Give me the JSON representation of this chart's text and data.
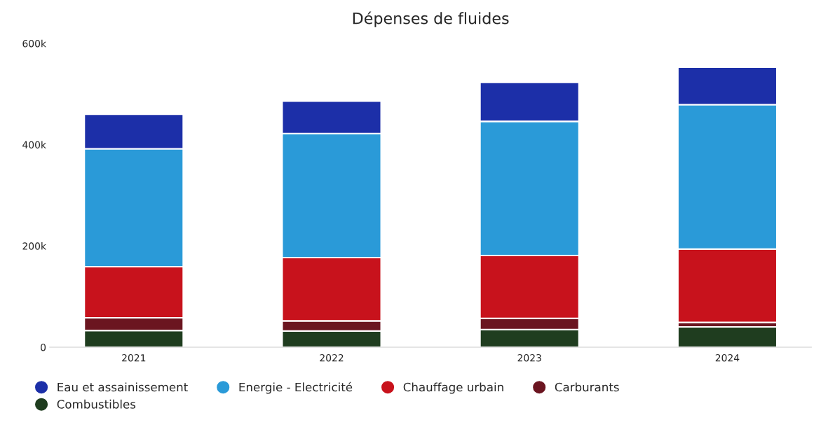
{
  "chart_data": {
    "type": "bar",
    "title": "Dépenses de fluides",
    "stacked": true,
    "categories": [
      "2021",
      "2022",
      "2023",
      "2024"
    ],
    "series": [
      {
        "name": "Combustibles",
        "color": "#1f3d1f",
        "values": [
          33,
          32,
          35,
          40
        ]
      },
      {
        "name": "Carburants",
        "color": "#6b1520",
        "values": [
          25,
          20,
          22,
          9
        ]
      },
      {
        "name": "Chauffage urbain",
        "color": "#c8121c",
        "values": [
          101,
          125,
          124,
          145
        ]
      },
      {
        "name": "Energie - Electricité",
        "color": "#2a9ad8",
        "values": [
          233,
          245,
          265,
          285
        ]
      },
      {
        "name": "Eau et assainissement",
        "color": "#1c2fa8",
        "values": [
          68,
          64,
          77,
          74
        ]
      }
    ],
    "ylim": [
      0,
      600
    ],
    "yticks": [
      {
        "value": 0,
        "label": "0"
      },
      {
        "value": 200,
        "label": "200k"
      },
      {
        "value": 400,
        "label": "400k"
      },
      {
        "value": 600,
        "label": "600k"
      }
    ],
    "legend": "bottom",
    "grid": false
  }
}
